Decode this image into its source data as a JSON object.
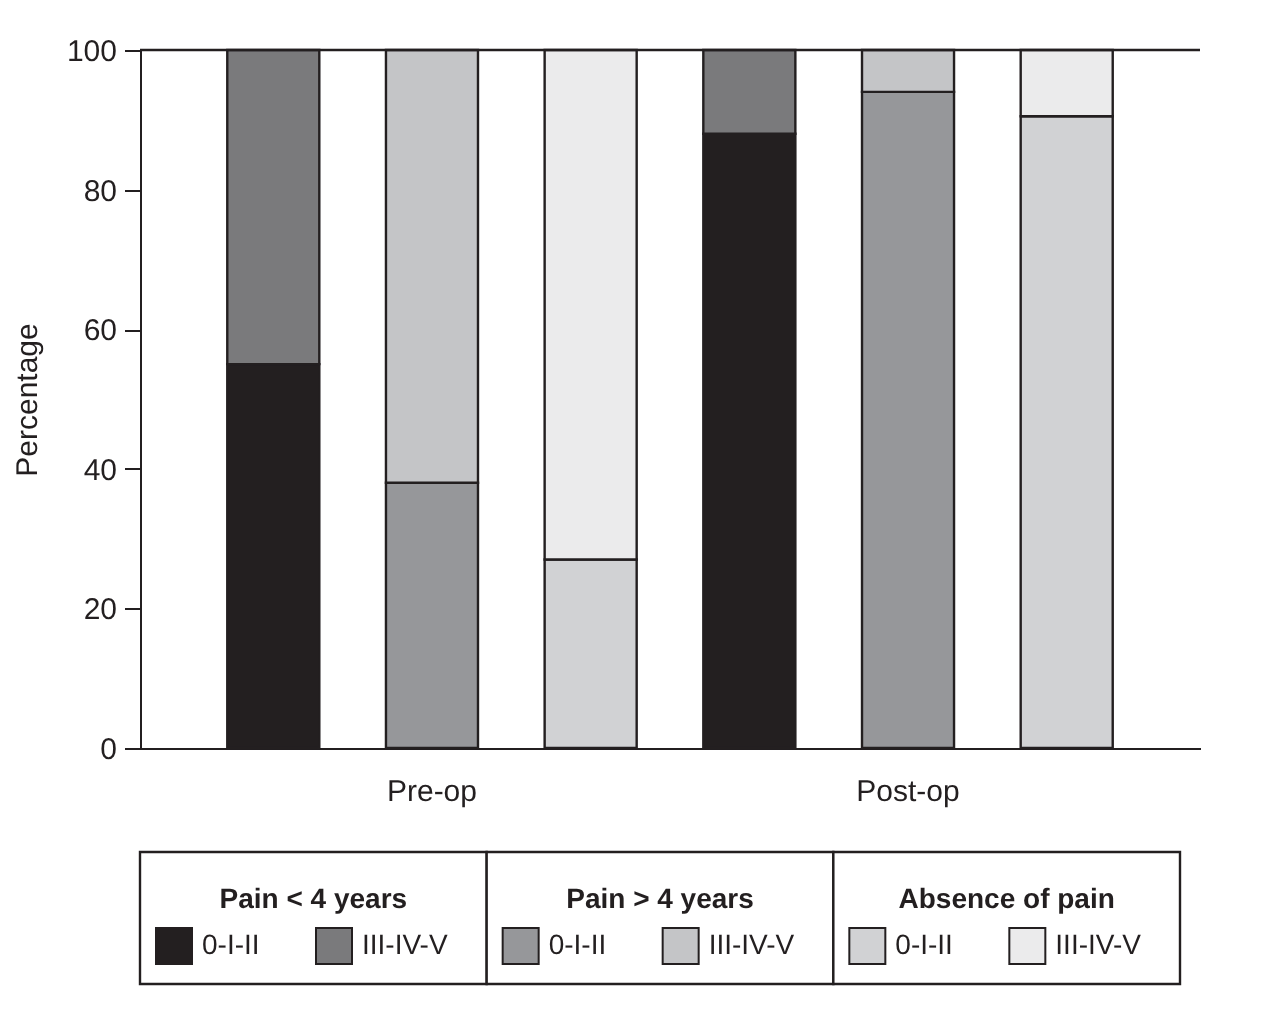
{
  "chart_data": {
    "type": "bar",
    "stacked": true,
    "ylabel": "Percentage",
    "categories": [
      null,
      "Pre-op",
      null,
      null,
      "Post-op",
      null
    ],
    "ylim": [
      0,
      100
    ],
    "yticks": [
      0,
      20,
      40,
      60,
      80,
      100
    ],
    "grid": false,
    "legend": "bottom",
    "annotations": [
      "Pain < 4 years",
      "Pain > 4 years",
      "Absence of pain"
    ],
    "series": [
      {
        "name": "0-I-II",
        "color": "#231f20",
        "values": [
          55,
          null,
          null,
          88,
          null,
          null
        ]
      },
      {
        "name": "III-IV-V",
        "color": "#7a7a7c",
        "values": [
          45,
          null,
          null,
          12,
          null,
          null
        ]
      },
      {
        "name": "0-I-II",
        "color": "#96979a",
        "values": [
          null,
          38,
          null,
          null,
          94,
          null
        ]
      },
      {
        "name": "III-IV-V",
        "color": "#c4c5c7",
        "values": [
          null,
          62,
          null,
          null,
          6,
          null
        ]
      },
      {
        "name": "0-I-II",
        "color": "#d1d2d4",
        "values": [
          null,
          null,
          27,
          null,
          null,
          90.5
        ]
      },
      {
        "name": "III-IV-V",
        "color": "#ebebec",
        "values": [
          null,
          null,
          73,
          null,
          null,
          9.5
        ]
      }
    ]
  }
}
